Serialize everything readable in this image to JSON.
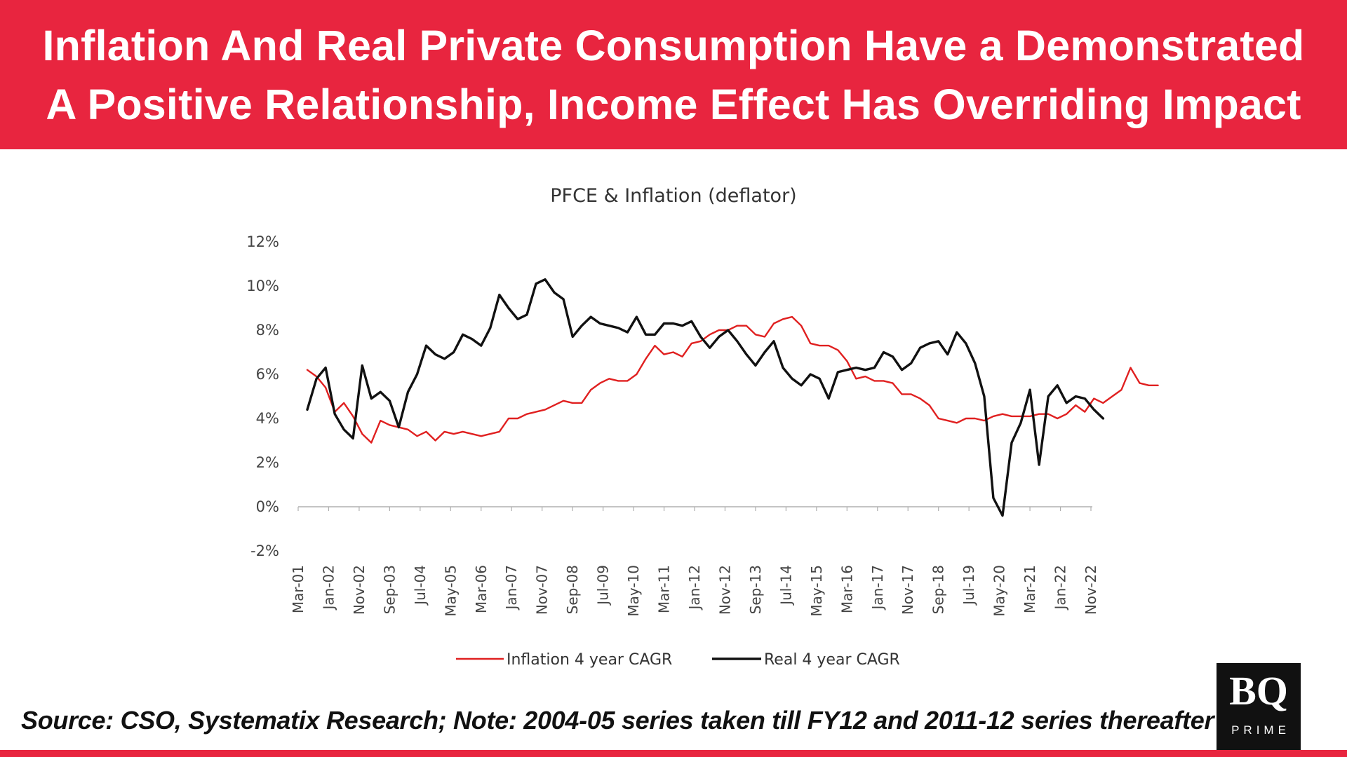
{
  "header": {
    "title_line1": "Inflation And Real Private Consumption Have a Demonstrated",
    "title_line2": "A Positive Relationship, Income Effect Has Overriding Impact",
    "background_color": "#e8253f"
  },
  "source_note": "Source: CSO, Systematix Research; Note: 2004-05 series taken till FY12 and 2011-12 series thereafter",
  "logo": {
    "text": "BQ",
    "subtext": "PRIME"
  },
  "chart_data": {
    "type": "line",
    "title": "PFCE & Inflation (deflator)",
    "xlabel": "",
    "ylabel": "",
    "ylim": [
      -0.02,
      0.12
    ],
    "y_ticks": [
      -0.02,
      0,
      0.02,
      0.04,
      0.06,
      0.08,
      0.1,
      0.12
    ],
    "y_tick_labels": [
      "-2%",
      "0%",
      "2%",
      "4%",
      "6%",
      "8%",
      "10%",
      "12%"
    ],
    "x_tick_labels": [
      "Mar-01",
      "Jan-02",
      "Nov-02",
      "Sep-03",
      "Jul-04",
      "May-05",
      "Mar-06",
      "Jan-07",
      "Nov-07",
      "Sep-08",
      "Jul-09",
      "May-10",
      "Mar-11",
      "Jan-12",
      "Nov-12",
      "Sep-13",
      "Jul-14",
      "May-15",
      "Mar-16",
      "Jan-17",
      "Nov-17",
      "Sep-18",
      "Jul-19",
      "May-20",
      "Mar-21",
      "Jan-22",
      "Nov-22"
    ],
    "x_range_months": "Mar-01 to Jun-23",
    "grid": false,
    "legend_position": "bottom",
    "series": [
      {
        "name": "Inflation 4 year CAGR",
        "color": "#e02020",
        "points": [
          [
            "Jun-01",
            0.062
          ],
          [
            "Sep-01",
            0.059
          ],
          [
            "Dec-01",
            0.054
          ],
          [
            "Mar-02",
            0.043
          ],
          [
            "Jun-02",
            0.047
          ],
          [
            "Sep-02",
            0.041
          ],
          [
            "Dec-02",
            0.033
          ],
          [
            "Mar-03",
            0.029
          ],
          [
            "Jun-03",
            0.039
          ],
          [
            "Sep-03",
            0.037
          ],
          [
            "Dec-03",
            0.036
          ],
          [
            "Mar-04",
            0.035
          ],
          [
            "Jun-04",
            0.032
          ],
          [
            "Sep-04",
            0.034
          ],
          [
            "Dec-04",
            0.03
          ],
          [
            "Mar-05",
            0.034
          ],
          [
            "Jun-05",
            0.033
          ],
          [
            "Sep-05",
            0.034
          ],
          [
            "Dec-05",
            0.033
          ],
          [
            "Mar-06",
            0.032
          ],
          [
            "Jun-06",
            0.033
          ],
          [
            "Sep-06",
            0.034
          ],
          [
            "Dec-06",
            0.04
          ],
          [
            "Mar-07",
            0.04
          ],
          [
            "Jun-07",
            0.042
          ],
          [
            "Sep-07",
            0.043
          ],
          [
            "Dec-07",
            0.044
          ],
          [
            "Mar-08",
            0.046
          ],
          [
            "Jun-08",
            0.048
          ],
          [
            "Sep-08",
            0.047
          ],
          [
            "Dec-08",
            0.047
          ],
          [
            "Mar-09",
            0.053
          ],
          [
            "Jun-09",
            0.056
          ],
          [
            "Sep-09",
            0.058
          ],
          [
            "Dec-09",
            0.057
          ],
          [
            "Mar-10",
            0.057
          ],
          [
            "Jun-10",
            0.06
          ],
          [
            "Sep-10",
            0.067
          ],
          [
            "Dec-10",
            0.073
          ],
          [
            "Mar-11",
            0.069
          ],
          [
            "Jun-11",
            0.07
          ],
          [
            "Sep-11",
            0.068
          ],
          [
            "Dec-11",
            0.074
          ],
          [
            "Mar-12",
            0.075
          ],
          [
            "Jun-12",
            0.078
          ],
          [
            "Sep-12",
            0.08
          ],
          [
            "Dec-12",
            0.08
          ],
          [
            "Mar-13",
            0.082
          ],
          [
            "Jun-13",
            0.082
          ],
          [
            "Sep-13",
            0.078
          ],
          [
            "Dec-13",
            0.077
          ],
          [
            "Mar-14",
            0.083
          ],
          [
            "Jun-14",
            0.085
          ],
          [
            "Sep-14",
            0.086
          ],
          [
            "Dec-14",
            0.082
          ],
          [
            "Mar-15",
            0.074
          ],
          [
            "Jun-15",
            0.073
          ],
          [
            "Sep-15",
            0.073
          ],
          [
            "Dec-15",
            0.071
          ],
          [
            "Mar-16",
            0.066
          ],
          [
            "Jun-16",
            0.058
          ],
          [
            "Sep-16",
            0.059
          ],
          [
            "Dec-16",
            0.057
          ],
          [
            "Mar-17",
            0.057
          ],
          [
            "Jun-17",
            0.056
          ],
          [
            "Sep-17",
            0.051
          ],
          [
            "Dec-17",
            0.051
          ],
          [
            "Mar-18",
            0.049
          ],
          [
            "Jun-18",
            0.046
          ],
          [
            "Sep-18",
            0.04
          ],
          [
            "Dec-18",
            0.039
          ],
          [
            "Mar-19",
            0.038
          ],
          [
            "Jun-19",
            0.04
          ],
          [
            "Sep-19",
            0.04
          ],
          [
            "Dec-19",
            0.039
          ],
          [
            "Mar-20",
            0.041
          ],
          [
            "Jun-20",
            0.042
          ],
          [
            "Sep-20",
            0.041
          ],
          [
            "Dec-20",
            0.041
          ],
          [
            "Mar-21",
            0.041
          ],
          [
            "Jun-21",
            0.042
          ],
          [
            "Sep-21",
            0.042
          ],
          [
            "Dec-21",
            0.04
          ],
          [
            "Mar-22",
            0.042
          ],
          [
            "Jun-22",
            0.046
          ],
          [
            "Sep-22",
            0.043
          ],
          [
            "Dec-22",
            0.049
          ],
          [
            "Mar-23",
            0.047
          ],
          [
            "Jun-23",
            0.05
          ],
          [
            "Sep-23",
            0.053
          ],
          [
            "Dec-23",
            0.063
          ],
          [
            "Mar-24",
            0.056
          ],
          [
            "Jun-24",
            0.055
          ],
          [
            "Sep-24",
            0.055
          ]
        ]
      },
      {
        "name": "Real 4 year CAGR",
        "color": "#111111",
        "points": [
          [
            "Jun-01",
            0.044
          ],
          [
            "Sep-01",
            0.058
          ],
          [
            "Dec-01",
            0.063
          ],
          [
            "Mar-02",
            0.042
          ],
          [
            "Jun-02",
            0.035
          ],
          [
            "Sep-02",
            0.031
          ],
          [
            "Dec-02",
            0.064
          ],
          [
            "Mar-03",
            0.049
          ],
          [
            "Jun-03",
            0.052
          ],
          [
            "Sep-03",
            0.048
          ],
          [
            "Dec-03",
            0.036
          ],
          [
            "Mar-04",
            0.052
          ],
          [
            "Jun-04",
            0.06
          ],
          [
            "Sep-04",
            0.073
          ],
          [
            "Dec-04",
            0.069
          ],
          [
            "Mar-05",
            0.067
          ],
          [
            "Jun-05",
            0.07
          ],
          [
            "Sep-05",
            0.078
          ],
          [
            "Dec-05",
            0.076
          ],
          [
            "Mar-06",
            0.073
          ],
          [
            "Jun-06",
            0.081
          ],
          [
            "Sep-06",
            0.096
          ],
          [
            "Dec-06",
            0.09
          ],
          [
            "Mar-07",
            0.085
          ],
          [
            "Jun-07",
            0.087
          ],
          [
            "Sep-07",
            0.101
          ],
          [
            "Dec-07",
            0.103
          ],
          [
            "Mar-08",
            0.097
          ],
          [
            "Jun-08",
            0.094
          ],
          [
            "Sep-08",
            0.077
          ],
          [
            "Dec-08",
            0.082
          ],
          [
            "Mar-09",
            0.086
          ],
          [
            "Jun-09",
            0.083
          ],
          [
            "Sep-09",
            0.082
          ],
          [
            "Dec-09",
            0.081
          ],
          [
            "Mar-10",
            0.079
          ],
          [
            "Jun-10",
            0.086
          ],
          [
            "Sep-10",
            0.078
          ],
          [
            "Dec-10",
            0.078
          ],
          [
            "Mar-11",
            0.083
          ],
          [
            "Jun-11",
            0.083
          ],
          [
            "Sep-11",
            0.082
          ],
          [
            "Dec-11",
            0.084
          ],
          [
            "Mar-12",
            0.077
          ],
          [
            "Jun-12",
            0.072
          ],
          [
            "Sep-12",
            0.077
          ],
          [
            "Dec-12",
            0.08
          ],
          [
            "Mar-13",
            0.075
          ],
          [
            "Jun-13",
            0.069
          ],
          [
            "Sep-13",
            0.064
          ],
          [
            "Dec-13",
            0.07
          ],
          [
            "Mar-14",
            0.075
          ],
          [
            "Jun-14",
            0.063
          ],
          [
            "Sep-14",
            0.058
          ],
          [
            "Dec-14",
            0.055
          ],
          [
            "Mar-15",
            0.06
          ],
          [
            "Jun-15",
            0.058
          ],
          [
            "Sep-15",
            0.049
          ],
          [
            "Dec-15",
            0.061
          ],
          [
            "Mar-16",
            0.062
          ],
          [
            "Jun-16",
            0.063
          ],
          [
            "Sep-16",
            0.062
          ],
          [
            "Dec-16",
            0.063
          ],
          [
            "Mar-17",
            0.07
          ],
          [
            "Jun-17",
            0.068
          ],
          [
            "Sep-17",
            0.062
          ],
          [
            "Dec-17",
            0.065
          ],
          [
            "Mar-18",
            0.072
          ],
          [
            "Jun-18",
            0.074
          ],
          [
            "Sep-18",
            0.075
          ],
          [
            "Dec-18",
            0.069
          ],
          [
            "Mar-19",
            0.079
          ],
          [
            "Jun-19",
            0.074
          ],
          [
            "Sep-19",
            0.065
          ],
          [
            "Dec-19",
            0.05
          ],
          [
            "Mar-20",
            0.004
          ],
          [
            "Jun-20",
            -0.004
          ],
          [
            "Sep-20",
            0.029
          ],
          [
            "Dec-20",
            0.038
          ],
          [
            "Mar-21",
            0.053
          ],
          [
            "Jun-21",
            0.019
          ],
          [
            "Sep-21",
            0.05
          ],
          [
            "Dec-21",
            0.055
          ],
          [
            "Mar-22",
            0.047
          ],
          [
            "Jun-22",
            0.05
          ],
          [
            "Sep-22",
            0.049
          ],
          [
            "Dec-22",
            0.044
          ],
          [
            "Mar-23",
            0.04
          ]
        ]
      }
    ]
  }
}
